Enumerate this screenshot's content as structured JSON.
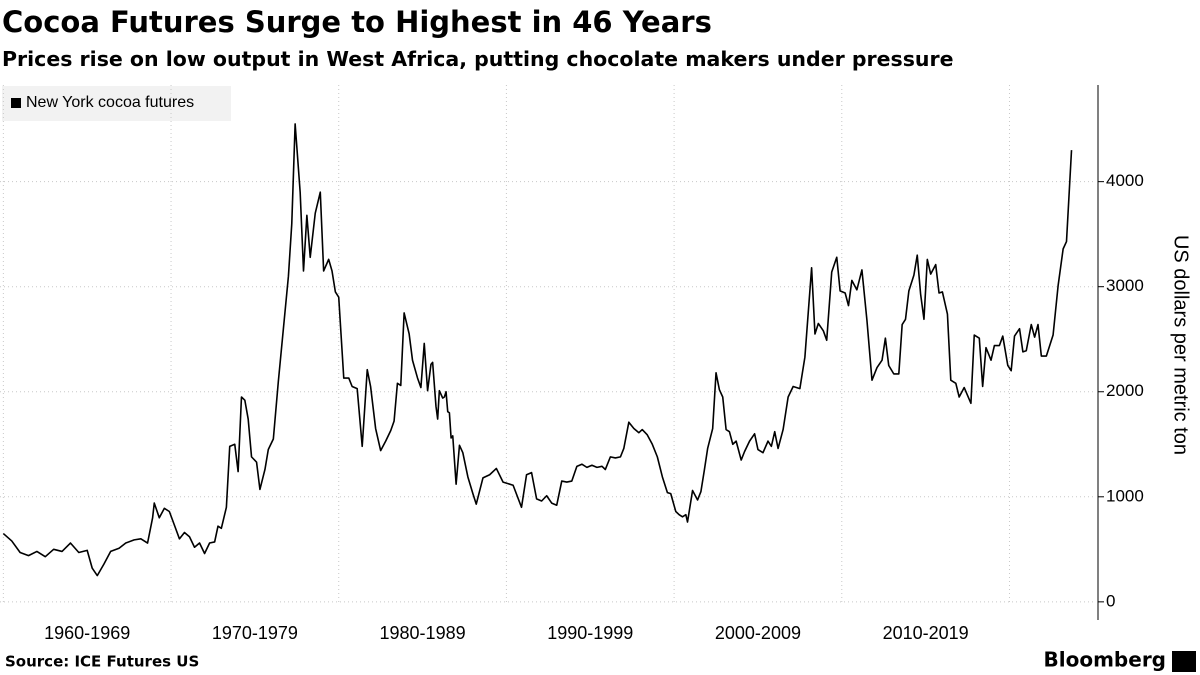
{
  "chart_data": {
    "type": "line",
    "title": "Cocoa Futures Surge to Highest in 46 Years",
    "subtitle": "Prices rise on low output in West Africa, putting chocolate makers under pressure",
    "y_axis_label": "US dollars per metric ton",
    "source": "Source: ICE Futures US",
    "logo": "Bloomberg",
    "categories": [
      "1960-1969",
      "1970-1979",
      "1980-1989",
      "1990-1999",
      "2000-2009",
      "2010-2019"
    ],
    "xlim": [
      1959.8,
      2025.1
    ],
    "xticks": [
      1960,
      1970,
      1980,
      1990,
      2000,
      2010,
      2020
    ],
    "ylim": [
      -30,
      4920
    ],
    "yticks": [
      0,
      1000,
      2000,
      3000,
      4000
    ],
    "grid": true,
    "legend": "top-left",
    "x": [
      1960.0,
      1960.5,
      1961.0,
      1961.5,
      1962.0,
      1962.5,
      1963.0,
      1963.5,
      1964.0,
      1964.5,
      1965.0,
      1965.3,
      1965.6,
      1966.0,
      1966.4,
      1966.9,
      1967.3,
      1967.8,
      1968.2,
      1968.6,
      1968.9,
      1969.0,
      1969.3,
      1969.6,
      1969.9,
      1970.2,
      1970.5,
      1970.8,
      1971.1,
      1971.4,
      1971.7,
      1972.0,
      1972.3,
      1972.6,
      1972.8,
      1973.0,
      1973.3,
      1973.5,
      1973.8,
      1974.0,
      1974.2,
      1974.4,
      1974.6,
      1974.8,
      1975.1,
      1975.3,
      1975.6,
      1975.8,
      1976.1,
      1976.4,
      1976.7,
      1977.0,
      1977.2,
      1977.4,
      1977.7,
      1977.9,
      1978.1,
      1978.3,
      1978.6,
      1978.9,
      1979.1,
      1979.4,
      1979.6,
      1979.8,
      1980.0,
      1980.3,
      1980.6,
      1980.8,
      1981.1,
      1981.4,
      1981.7,
      1981.9,
      1982.2,
      1982.5,
      1982.8,
      1983.1,
      1983.3,
      1983.5,
      1983.7,
      1983.9,
      1984.2,
      1984.4,
      1984.7,
      1984.9,
      1985.1,
      1985.3,
      1985.5,
      1985.6,
      1985.8,
      1985.9,
      1986.0,
      1986.2,
      1986.3,
      1986.4,
      1986.5,
      1986.6,
      1986.7,
      1986.8,
      1987.0,
      1987.2,
      1987.4,
      1987.7,
      1988.0,
      1988.2,
      1988.6,
      1989.0,
      1989.4,
      1989.8,
      1990.4,
      1990.9,
      1991.2,
      1991.5,
      1991.8,
      1992.1,
      1992.4,
      1992.7,
      1993.0,
      1993.3,
      1993.6,
      1993.9,
      1994.2,
      1994.5,
      1994.8,
      1995.1,
      1995.4,
      1995.7,
      1995.9,
      1996.2,
      1996.5,
      1996.8,
      1997.0,
      1997.3,
      1997.6,
      1997.9,
      1998.1,
      1998.4,
      1998.7,
      1999.0,
      1999.3,
      1999.6,
      1999.8,
      2000.1,
      2000.3,
      2000.5,
      2000.7,
      2000.8,
      2001.1,
      2001.4,
      2001.6,
      2001.8,
      2002.0,
      2002.3,
      2002.5,
      2002.7,
      2002.9,
      2003.1,
      2003.3,
      2003.5,
      2003.7,
      2004.0,
      2004.2,
      2004.5,
      2004.8,
      2005.0,
      2005.3,
      2005.6,
      2005.8,
      2006.0,
      2006.2,
      2006.5,
      2006.8,
      2007.1,
      2007.5,
      2007.8,
      2008.2,
      2008.4,
      2008.6,
      2008.9,
      2009.1,
      2009.4,
      2009.7,
      2009.9,
      2010.2,
      2010.4,
      2010.6,
      2010.9,
      2011.2,
      2011.5,
      2011.8,
      2012.1,
      2012.4,
      2012.6,
      2012.8,
      2013.1,
      2013.4,
      2013.6,
      2013.8,
      2014.0,
      2014.3,
      2014.5,
      2014.7,
      2014.9,
      2015.1,
      2015.3,
      2015.6,
      2015.8,
      2016.0,
      2016.3,
      2016.5,
      2016.8,
      2017.0,
      2017.3,
      2017.7,
      2017.9,
      2018.2,
      2018.4,
      2018.6,
      2018.9,
      2019.1,
      2019.4,
      2019.6,
      2019.9,
      2020.1,
      2020.3,
      2020.6,
      2020.8,
      2021.0,
      2021.3,
      2021.5,
      2021.7,
      2021.9,
      2022.2,
      2022.6,
      2022.9,
      2023.2,
      2023.4,
      2023.7
    ],
    "series": [
      {
        "name": "New York cocoa futures",
        "color": "#000000",
        "values": [
          650,
          580,
          470,
          440,
          480,
          430,
          500,
          480,
          560,
          470,
          490,
          320,
          250,
          360,
          480,
          510,
          560,
          590,
          600,
          560,
          800,
          940,
          800,
          890,
          860,
          730,
          600,
          660,
          620,
          520,
          560,
          460,
          560,
          570,
          720,
          700,
          900,
          1480,
          1500,
          1240,
          1950,
          1920,
          1740,
          1380,
          1330,
          1070,
          1260,
          1450,
          1550,
          2100,
          2600,
          3100,
          3600,
          4550,
          3900,
          3150,
          3680,
          3280,
          3700,
          3900,
          3150,
          3260,
          3150,
          2950,
          2900,
          2130,
          2130,
          2050,
          2030,
          1480,
          2210,
          2050,
          1650,
          1440,
          1530,
          1630,
          1720,
          2080,
          2060,
          2750,
          2550,
          2300,
          2130,
          2040,
          2460,
          2010,
          2260,
          2280,
          1860,
          1740,
          2010,
          1940,
          1950,
          2000,
          1810,
          1800,
          1560,
          1580,
          1120,
          1490,
          1420,
          1190,
          1030,
          930,
          1180,
          1210,
          1270,
          1140,
          1110,
          900,
          1210,
          1230,
          980,
          960,
          1010,
          940,
          920,
          1150,
          1140,
          1150,
          1290,
          1310,
          1280,
          1300,
          1280,
          1290,
          1260,
          1380,
          1370,
          1380,
          1460,
          1710,
          1650,
          1610,
          1640,
          1590,
          1500,
          1380,
          1190,
          1040,
          1030,
          860,
          830,
          810,
          830,
          760,
          1060,
          970,
          1050,
          1250,
          1460,
          1650,
          2180,
          2020,
          1950,
          1640,
          1620,
          1500,
          1530,
          1350,
          1430,
          1530,
          1600,
          1450,
          1420,
          1530,
          1480,
          1620,
          1460,
          1640,
          1950,
          2050,
          2030,
          2330,
          3180,
          2550,
          2650,
          2580,
          2490,
          3140,
          3280,
          2960,
          2940,
          2820,
          3060,
          2970,
          3160,
          2680,
          2110,
          2230,
          2300,
          2510,
          2250,
          2170,
          2170,
          2640,
          2690,
          2960,
          3110,
          3300,
          2930,
          2690,
          3260,
          3120,
          3210,
          2940,
          2950,
          2740,
          2110,
          2080,
          1950,
          2040,
          1890,
          2540,
          2510,
          2050,
          2420,
          2300,
          2440,
          2440,
          2530,
          2250,
          2200,
          2530,
          2600,
          2380,
          2390,
          2640,
          2520,
          2640,
          2340,
          2340,
          2540,
          3010,
          3360,
          3430,
          4300
        ]
      }
    ]
  }
}
